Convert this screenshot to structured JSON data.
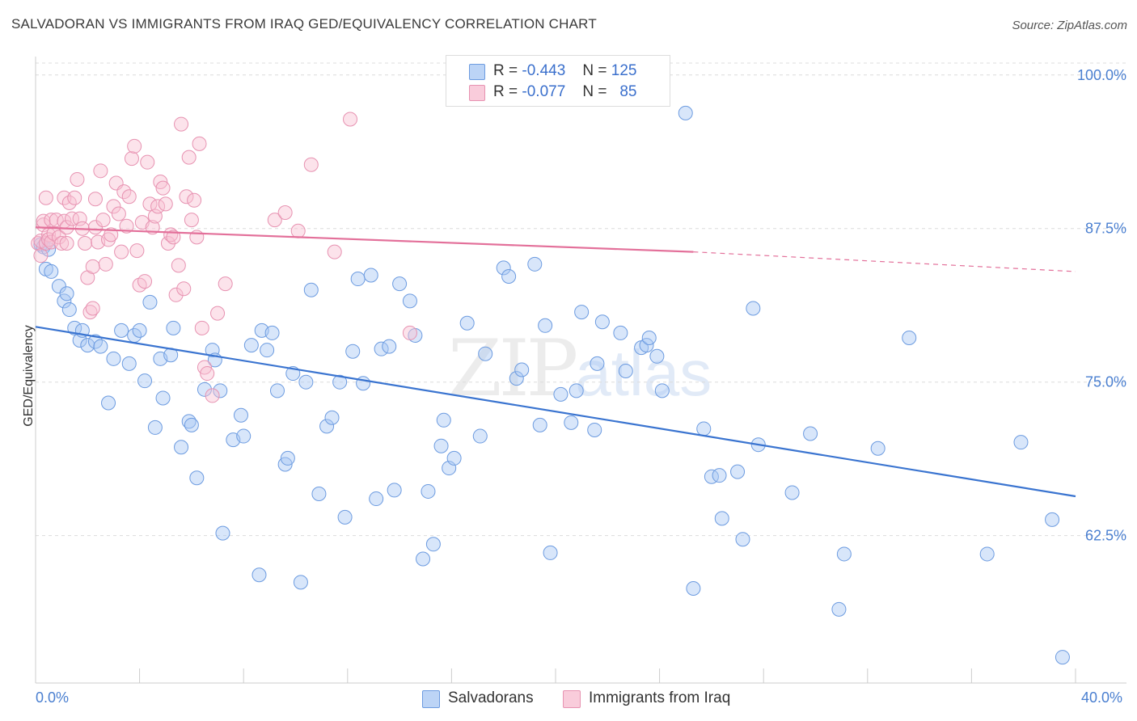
{
  "title": "SALVADORAN VS IMMIGRANTS FROM IRAQ GED/EQUIVALENCY CORRELATION CHART",
  "source": "Source: ZipAtlas.com",
  "watermark": {
    "zip": "ZIP",
    "atlas": "atlas"
  },
  "legend": {
    "r_label": "R =",
    "n_label": "N =",
    "series": [
      {
        "r": "-0.443",
        "n": "125",
        "fill": "#a9c8f5",
        "stroke": "#5b8fdc"
      },
      {
        "r": "-0.077",
        "n": "85",
        "fill": "#f8c1d2",
        "stroke": "#e586a8"
      }
    ]
  },
  "bottom_legend": [
    {
      "label": "Salvadorans"
    },
    {
      "label": "Immigrants from Iraq"
    }
  ],
  "chart_data": {
    "type": "scatter",
    "title": "SALVADORAN VS IMMIGRANTS FROM IRAQ GED/EQUIVALENCY CORRELATION CHART",
    "xlabel": "",
    "ylabel": "GED/Equivalency",
    "xlim": [
      0,
      40
    ],
    "ylim": [
      50.5,
      101.5
    ],
    "x_tick_labels": [
      "0.0%",
      "40.0%"
    ],
    "y_ticks": [
      62.5,
      75.0,
      87.5,
      100.0
    ],
    "y_tick_labels": [
      "62.5%",
      "75.0%",
      "87.5%",
      "100.0%"
    ],
    "grid": true,
    "colors": {
      "blue": "#3a74d0",
      "pink": "#e3709a",
      "tick_text": "#4a7fd0"
    },
    "series": [
      {
        "name": "Salvadorans",
        "color": "#3a74d0",
        "trend": {
          "x": [
            0,
            40
          ],
          "y": [
            79.5,
            65.7
          ],
          "style": "solid"
        },
        "points": [
          [
            0.2,
            86.2
          ],
          [
            0.3,
            86.0
          ],
          [
            0.4,
            84.2
          ],
          [
            0.5,
            85.8
          ],
          [
            0.6,
            84.0
          ],
          [
            0.9,
            82.8
          ],
          [
            1.1,
            81.6
          ],
          [
            1.2,
            82.2
          ],
          [
            1.3,
            80.9
          ],
          [
            1.5,
            79.4
          ],
          [
            1.7,
            78.4
          ],
          [
            1.8,
            79.2
          ],
          [
            2.0,
            78.0
          ],
          [
            2.3,
            78.3
          ],
          [
            2.5,
            77.9
          ],
          [
            2.8,
            73.3
          ],
          [
            3.0,
            76.9
          ],
          [
            3.3,
            79.2
          ],
          [
            3.6,
            76.5
          ],
          [
            3.8,
            78.8
          ],
          [
            4.0,
            79.2
          ],
          [
            4.2,
            75.1
          ],
          [
            4.4,
            81.5
          ],
          [
            4.6,
            71.3
          ],
          [
            4.8,
            76.9
          ],
          [
            4.9,
            73.7
          ],
          [
            5.2,
            77.2
          ],
          [
            5.3,
            79.4
          ],
          [
            5.6,
            69.7
          ],
          [
            5.9,
            71.8
          ],
          [
            6.0,
            71.5
          ],
          [
            6.2,
            67.2
          ],
          [
            6.5,
            74.4
          ],
          [
            6.8,
            77.6
          ],
          [
            6.9,
            76.8
          ],
          [
            7.1,
            74.3
          ],
          [
            7.2,
            62.7
          ],
          [
            7.6,
            70.3
          ],
          [
            7.9,
            72.3
          ],
          [
            8.0,
            70.6
          ],
          [
            8.3,
            78.0
          ],
          [
            8.6,
            59.3
          ],
          [
            8.7,
            79.2
          ],
          [
            8.9,
            77.6
          ],
          [
            9.1,
            79.0
          ],
          [
            9.3,
            74.3
          ],
          [
            9.6,
            68.3
          ],
          [
            9.7,
            68.8
          ],
          [
            9.9,
            75.7
          ],
          [
            10.2,
            58.7
          ],
          [
            10.4,
            75.0
          ],
          [
            10.6,
            82.5
          ],
          [
            10.9,
            65.9
          ],
          [
            11.2,
            71.4
          ],
          [
            11.4,
            72.1
          ],
          [
            11.7,
            75.0
          ],
          [
            11.9,
            64.0
          ],
          [
            12.2,
            77.5
          ],
          [
            12.4,
            83.4
          ],
          [
            12.6,
            74.9
          ],
          [
            12.9,
            83.7
          ],
          [
            13.1,
            65.5
          ],
          [
            13.3,
            77.7
          ],
          [
            13.6,
            77.9
          ],
          [
            13.8,
            66.2
          ],
          [
            14.0,
            83.0
          ],
          [
            14.4,
            81.6
          ],
          [
            14.6,
            78.8
          ],
          [
            14.9,
            60.6
          ],
          [
            15.1,
            66.1
          ],
          [
            15.3,
            61.8
          ],
          [
            15.6,
            69.8
          ],
          [
            15.7,
            71.9
          ],
          [
            15.9,
            68.0
          ],
          [
            16.1,
            68.8
          ],
          [
            16.6,
            79.8
          ],
          [
            17.1,
            70.6
          ],
          [
            17.3,
            77.3
          ],
          [
            18.0,
            84.3
          ],
          [
            18.2,
            83.6
          ],
          [
            18.5,
            75.3
          ],
          [
            18.7,
            76.0
          ],
          [
            19.2,
            84.6
          ],
          [
            19.4,
            71.5
          ],
          [
            19.6,
            79.6
          ],
          [
            19.8,
            61.1
          ],
          [
            20.2,
            74.0
          ],
          [
            20.6,
            71.7
          ],
          [
            20.8,
            74.3
          ],
          [
            21.0,
            80.7
          ],
          [
            21.5,
            71.1
          ],
          [
            21.6,
            76.5
          ],
          [
            21.8,
            79.9
          ],
          [
            22.5,
            79.0
          ],
          [
            22.7,
            75.9
          ],
          [
            23.3,
            77.8
          ],
          [
            23.5,
            78.0
          ],
          [
            23.6,
            78.6
          ],
          [
            23.9,
            77.1
          ],
          [
            24.1,
            74.3
          ],
          [
            25.0,
            96.9
          ],
          [
            25.3,
            58.2
          ],
          [
            25.7,
            71.2
          ],
          [
            26.0,
            67.3
          ],
          [
            26.3,
            67.4
          ],
          [
            26.4,
            63.9
          ],
          [
            27.0,
            67.7
          ],
          [
            27.2,
            62.2
          ],
          [
            27.6,
            81.0
          ],
          [
            27.8,
            69.9
          ],
          [
            29.1,
            66.0
          ],
          [
            29.8,
            70.8
          ],
          [
            30.9,
            56.5
          ],
          [
            31.1,
            61.0
          ],
          [
            32.4,
            69.6
          ],
          [
            33.6,
            78.6
          ],
          [
            36.6,
            61.0
          ],
          [
            37.9,
            70.1
          ],
          [
            39.1,
            63.8
          ],
          [
            39.5,
            52.6
          ]
        ]
      },
      {
        "name": "Immigrants from Iraq",
        "color": "#e3709a",
        "trend": {
          "x": [
            0,
            25.3
          ],
          "y": [
            87.6,
            85.6
          ],
          "style": "solid"
        },
        "trend_extension": {
          "x": [
            25.3,
            40
          ],
          "y": [
            85.6,
            84.0
          ],
          "style": "dashed"
        },
        "points": [
          [
            0.1,
            86.3
          ],
          [
            0.2,
            85.3
          ],
          [
            0.2,
            86.5
          ],
          [
            0.3,
            87.8
          ],
          [
            0.3,
            88.1
          ],
          [
            0.4,
            86.3
          ],
          [
            0.4,
            90.0
          ],
          [
            0.5,
            87.0
          ],
          [
            0.5,
            86.6
          ],
          [
            0.6,
            88.2
          ],
          [
            0.6,
            86.4
          ],
          [
            0.7,
            87.1
          ],
          [
            0.8,
            88.2
          ],
          [
            0.9,
            86.8
          ],
          [
            1.0,
            86.3
          ],
          [
            1.1,
            90.0
          ],
          [
            1.1,
            88.1
          ],
          [
            1.2,
            86.3
          ],
          [
            1.2,
            87.6
          ],
          [
            1.3,
            89.6
          ],
          [
            1.4,
            88.3
          ],
          [
            1.5,
            90.0
          ],
          [
            1.6,
            91.5
          ],
          [
            1.7,
            88.3
          ],
          [
            1.8,
            87.5
          ],
          [
            1.9,
            86.3
          ],
          [
            2.0,
            83.5
          ],
          [
            2.1,
            80.7
          ],
          [
            2.2,
            81.0
          ],
          [
            2.2,
            84.4
          ],
          [
            2.3,
            87.6
          ],
          [
            2.3,
            89.9
          ],
          [
            2.4,
            86.4
          ],
          [
            2.5,
            92.2
          ],
          [
            2.6,
            88.2
          ],
          [
            2.7,
            84.6
          ],
          [
            2.8,
            86.6
          ],
          [
            2.9,
            87.0
          ],
          [
            3.0,
            89.3
          ],
          [
            3.1,
            91.2
          ],
          [
            3.2,
            88.7
          ],
          [
            3.3,
            85.6
          ],
          [
            3.4,
            90.5
          ],
          [
            3.5,
            87.7
          ],
          [
            3.6,
            90.1
          ],
          [
            3.7,
            93.2
          ],
          [
            3.8,
            94.2
          ],
          [
            3.9,
            85.7
          ],
          [
            4.0,
            82.9
          ],
          [
            4.1,
            88.0
          ],
          [
            4.2,
            83.2
          ],
          [
            4.3,
            92.9
          ],
          [
            4.4,
            89.5
          ],
          [
            4.5,
            87.6
          ],
          [
            4.6,
            88.5
          ],
          [
            4.7,
            89.3
          ],
          [
            4.8,
            91.3
          ],
          [
            4.9,
            90.8
          ],
          [
            5.0,
            89.5
          ],
          [
            5.1,
            86.3
          ],
          [
            5.2,
            87.0
          ],
          [
            5.3,
            86.8
          ],
          [
            5.4,
            82.1
          ],
          [
            5.5,
            84.5
          ],
          [
            5.6,
            96.0
          ],
          [
            5.7,
            82.6
          ],
          [
            5.8,
            90.1
          ],
          [
            5.9,
            93.3
          ],
          [
            6.0,
            88.2
          ],
          [
            6.1,
            89.8
          ],
          [
            6.2,
            86.8
          ],
          [
            6.3,
            94.4
          ],
          [
            6.4,
            79.4
          ],
          [
            6.5,
            76.2
          ],
          [
            6.6,
            75.7
          ],
          [
            6.8,
            73.9
          ],
          [
            7.0,
            80.6
          ],
          [
            7.3,
            83.0
          ],
          [
            9.2,
            88.2
          ],
          [
            9.6,
            88.8
          ],
          [
            10.1,
            87.3
          ],
          [
            10.6,
            92.7
          ],
          [
            11.5,
            85.6
          ],
          [
            12.1,
            96.4
          ],
          [
            14.4,
            79.0
          ]
        ]
      }
    ]
  }
}
